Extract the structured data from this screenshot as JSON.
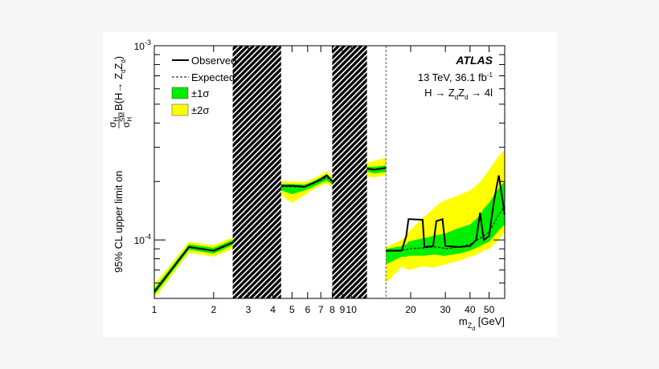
{
  "chart_data": {
    "type": "line",
    "experiment": "ATLAS",
    "energy_lumi": "13 TeV, 36.1 fb",
    "energy_lumi_sup": "-1",
    "process": [
      "H",
      "→",
      "Z",
      "d",
      "Z",
      "d",
      "→",
      "4l"
    ],
    "xlabel": {
      "main": "m",
      "sub": "Z",
      "subsub": "d",
      "unit": "[GeV]"
    },
    "ylabel": {
      "prefix": "95% CL upper limit on",
      "num": "σ",
      "num_sub": "H",
      "den": "σ",
      "den_sub": "H",
      "den_sup": "SM",
      "suffix": "B(H→ Z",
      "z_sub": "d",
      "z2": "Z",
      "z2_sub": "d",
      "close": ")"
    },
    "x_scale": "log",
    "y_scale": "log",
    "xlim": [
      1,
      60
    ],
    "ylim": [
      5e-05,
      0.001
    ],
    "x_ticks": [
      {
        "value": 1,
        "label": "1"
      },
      {
        "value": 2,
        "label": "2"
      },
      {
        "value": 3,
        "label": "3"
      },
      {
        "value": 4,
        "label": "4"
      },
      {
        "value": 5,
        "label": "5"
      },
      {
        "value": 6,
        "label": "6"
      },
      {
        "value": 7,
        "label": "7"
      },
      {
        "value": 8,
        "label": "8"
      },
      {
        "value": 9,
        "label": "9"
      },
      {
        "value": 10,
        "label": "10"
      },
      {
        "value": 20,
        "label": "20"
      },
      {
        "value": 30,
        "label": "30"
      },
      {
        "value": 40,
        "label": "40"
      },
      {
        "value": 50,
        "label": "50"
      }
    ],
    "y_ticks": [
      {
        "value": 0.0001,
        "base": "10",
        "exp": "-4"
      },
      {
        "value": 0.001,
        "base": "10",
        "exp": "-3"
      }
    ],
    "legend": {
      "placement": "top-left",
      "entries": [
        {
          "label": "Observed",
          "style": "solid-line"
        },
        {
          "label": "Expected",
          "style": "dashed-line"
        },
        {
          "label": "±1σ",
          "style": "box",
          "color": "#00ee00"
        },
        {
          "label": "±2σ",
          "style": "box",
          "color": "#ffff00"
        }
      ]
    },
    "colors": {
      "band_1sigma": "#00ee00",
      "band_2sigma": "#ffff00",
      "observed": "#000000",
      "expected": "#000000"
    },
    "excluded_regions": [
      [
        2.5,
        4.4
      ],
      [
        8,
        12
      ]
    ],
    "divider_x": 15,
    "segments": [
      {
        "x": [
          1,
          1.5,
          2,
          2.5
        ],
        "observed": [
          5.4e-05,
          9.2e-05,
          8.8e-05,
          9.7e-05
        ],
        "expected": [
          5.4e-05,
          9.2e-05,
          8.8e-05,
          9.7e-05
        ],
        "band_1sigma": {
          "low": [
            5.2e-05,
            8.9e-05,
            8.5e-05,
            9.4e-05
          ],
          "high": [
            5.6e-05,
            9.5e-05,
            9.1e-05,
            0.0001
          ]
        },
        "band_2sigma": {
          "low": [
            5e-05,
            8.6e-05,
            8.2e-05,
            9e-05
          ],
          "high": [
            5.9e-05,
            9.8e-05,
            9.4e-05,
            0.000103
          ]
        }
      },
      {
        "x": [
          4.4,
          5,
          5.8,
          6.3,
          7,
          7.5,
          8
        ],
        "observed": [
          0.00019,
          0.00019,
          0.000188,
          0.000195,
          0.000205,
          0.000215,
          0.0002
        ],
        "expected": [
          0.000188,
          0.000188,
          0.000187,
          0.000193,
          0.000203,
          0.00021,
          0.0002
        ],
        "band_1sigma": {
          "low": [
            0.00018,
            0.000172,
            0.00018,
            0.000186,
            0.000196,
            0.000202,
            0.000193
          ],
          "high": [
            0.000194,
            0.000194,
            0.000193,
            0.000199,
            0.00021,
            0.000218,
            0.000207
          ]
        },
        "band_2sigma": {
          "low": [
            0.00017,
            0.000155,
            0.00017,
            0.00018,
            0.00019,
            0.000195,
            0.000188
          ],
          "high": [
            0.0002,
            0.0002,
            0.000199,
            0.000205,
            0.000217,
            0.000226,
            0.000213
          ]
        }
      },
      {
        "x": [
          12,
          13,
          15
        ],
        "observed": [
          0.000233,
          0.00023,
          0.000235
        ],
        "expected": [
          0.000232,
          0.00023,
          0.000233
        ],
        "band_1sigma": {
          "low": [
            0.000225,
            0.00022,
            0.000224
          ],
          "high": [
            0.000238,
            0.000238,
            0.000242
          ]
        },
        "band_2sigma": {
          "low": [
            0.000212,
            0.00021,
            0.000215
          ],
          "high": [
            0.00025,
            0.000255,
            0.000265
          ]
        }
      },
      {
        "x": [
          15,
          18,
          19,
          19.5,
          23,
          23.5,
          26,
          27,
          29,
          30,
          35,
          40,
          43,
          45,
          47,
          50,
          53,
          56,
          60
        ],
        "observed": [
          8.8e-05,
          8.8e-05,
          0.000105,
          0.000128,
          0.000127,
          9.2e-05,
          9.3e-05,
          0.000125,
          0.000128,
          9.3e-05,
          9.2e-05,
          9.3e-05,
          0.0001,
          0.000138,
          0.0001,
          0.000105,
          0.00016,
          0.000215,
          0.000135
        ],
        "expected": [
          8.8e-05,
          8.9e-05,
          8.9e-05,
          9e-05,
          9.1e-05,
          9.1e-05,
          9.2e-05,
          9.2e-05,
          9.1e-05,
          9e-05,
          9.2e-05,
          9.5e-05,
          9.9e-05,
          0.000102,
          0.000105,
          0.00011,
          0.000122,
          0.000135,
          0.00015
        ],
        "band_1sigma": {
          "low": [
            7.5e-05,
            8.2e-05,
            8.2e-05,
            8.3e-05,
            8.3e-05,
            8.3e-05,
            8.4e-05,
            8.4e-05,
            8.3e-05,
            8.3e-05,
            8.5e-05,
            8.8e-05,
            9.1e-05,
            9.3e-05,
            9.5e-05,
            9.8e-05,
            0.000105,
            0.000112,
            0.00012
          ],
          "high": [
            9e-05,
            9.3e-05,
            9.5e-05,
            9.8e-05,
            0.000102,
            0.000102,
            0.000105,
            0.000106,
            0.000107,
            0.000108,
            0.000115,
            0.00012,
            0.000128,
            0.000135,
            0.000145,
            0.000155,
            0.00017,
            0.000185,
            0.0002
          ]
        },
        "band_2sigma": {
          "low": [
            6e-05,
            7.3e-05,
            7.1e-05,
            7e-05,
            7.3e-05,
            7.3e-05,
            7.2e-05,
            7.3e-05,
            7.4e-05,
            7.5e-05,
            7.8e-05,
            8.2e-05,
            8.4e-05,
            8.6e-05,
            8.8e-05,
            9e-05,
            9.5e-05,
            0.0001,
            0.00011
          ],
          "high": [
            9.2e-05,
            0.0001,
            0.000105,
            0.00011,
            0.00013,
            0.000132,
            0.000145,
            0.00015,
            0.000158,
            0.00016,
            0.00017,
            0.00018,
            0.00019,
            0.0002,
            0.00021,
            0.00023,
            0.00025,
            0.00027,
            0.00029
          ]
        }
      }
    ]
  }
}
